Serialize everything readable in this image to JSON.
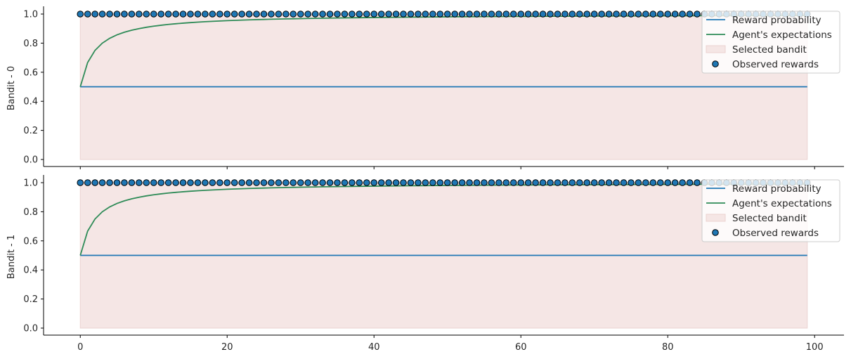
{
  "chart_data": [
    {
      "type": "line",
      "ylabel": "Bandit - 0",
      "xlim": [
        -5,
        104
      ],
      "ylim": [
        0,
        1
      ],
      "x_ticks": [
        0,
        20,
        40,
        60,
        80,
        100
      ],
      "y_ticks": [
        "0.0",
        "0.2",
        "0.4",
        "0.6",
        "0.8",
        "1.0"
      ],
      "x_tick_labels_visible": false,
      "reward_probability": 0.5,
      "expectation_model": "(1 + t) / (2 + t), t = 0..99",
      "selected_range": [
        0,
        99
      ],
      "observed_reward_value": 1.0,
      "observed_reward_count": 100,
      "legend": {
        "placement": "top-right",
        "entries": [
          "Reward probability",
          "Agent's expectations",
          "Selected bandit",
          "Observed rewards"
        ]
      }
    },
    {
      "type": "line",
      "ylabel": "Bandit - 1",
      "xlim": [
        -5,
        104
      ],
      "ylim": [
        0,
        1
      ],
      "x_ticks": [
        0,
        20,
        40,
        60,
        80,
        100
      ],
      "x_tick_labels": [
        "0",
        "20",
        "40",
        "60",
        "80",
        "100"
      ],
      "y_ticks": [
        "0.0",
        "0.2",
        "0.4",
        "0.6",
        "0.8",
        "1.0"
      ],
      "x_tick_labels_visible": true,
      "reward_probability": 0.5,
      "expectation_model": "(1 + t) / (2 + t), t = 0..99",
      "selected_range": [
        0,
        99
      ],
      "observed_reward_value": 1.0,
      "observed_reward_count": 100,
      "legend": {
        "placement": "top-right",
        "entries": [
          "Reward probability",
          "Agent's expectations",
          "Selected bandit",
          "Observed rewards"
        ]
      }
    }
  ],
  "colors": {
    "reward_probability": "#1f77b4",
    "expectations": "#2e8b57",
    "selected_fill": "#f5e6e5",
    "selected_edge": "#ead2d0",
    "marker_fill": "#1f77b4",
    "marker_edge": "#000000",
    "axis": "#000000",
    "text": "#262626"
  }
}
